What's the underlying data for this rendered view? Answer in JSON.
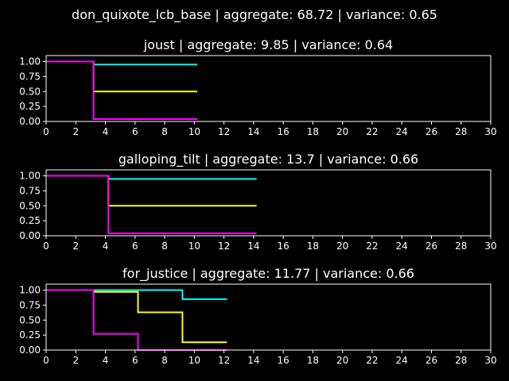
{
  "figure": {
    "title": "don_quixote_lcb_base | aggregate: 68.72 | variance: 0.65"
  },
  "colors": {
    "background": "#000000",
    "axes": "#ffffff",
    "series": [
      "#00ffff",
      "#ffff00",
      "#ff00ff"
    ]
  },
  "chart_data": [
    {
      "type": "line",
      "step": "post",
      "title": "joust | aggregate: 9.85 | variance: 0.64",
      "xlim": [
        0,
        30
      ],
      "ylim": [
        0,
        1.1
      ],
      "xticks": [
        "0",
        "2",
        "4",
        "6",
        "8",
        "10",
        "12",
        "14",
        "16",
        "18",
        "20",
        "22",
        "24",
        "26",
        "28",
        "30"
      ],
      "yticks": [
        "0.00",
        "0.25",
        "0.50",
        "0.75",
        "1.00"
      ],
      "series": [
        {
          "color": "#00ffff",
          "x": [
            0,
            3.2,
            10.2
          ],
          "y": [
            1.0,
            0.95,
            0.95
          ]
        },
        {
          "color": "#ffff00",
          "x": [
            0,
            3.2,
            10.2
          ],
          "y": [
            1.0,
            0.5,
            0.5
          ]
        },
        {
          "color": "#ff00ff",
          "x": [
            0,
            3.2,
            10.2
          ],
          "y": [
            1.0,
            0.04,
            0.04
          ]
        }
      ]
    },
    {
      "type": "line",
      "step": "post",
      "title": "galloping_tilt | aggregate: 13.7 | variance: 0.66",
      "xlim": [
        0,
        30
      ],
      "ylim": [
        0,
        1.1
      ],
      "xticks": [
        "0",
        "2",
        "4",
        "6",
        "8",
        "10",
        "12",
        "14",
        "16",
        "18",
        "20",
        "22",
        "24",
        "26",
        "28",
        "30"
      ],
      "yticks": [
        "0.00",
        "0.25",
        "0.50",
        "0.75",
        "1.00"
      ],
      "series": [
        {
          "color": "#00ffff",
          "x": [
            0,
            4.2,
            14.2
          ],
          "y": [
            1.0,
            0.95,
            0.95
          ]
        },
        {
          "color": "#ffff00",
          "x": [
            0,
            4.2,
            14.2
          ],
          "y": [
            1.0,
            0.5,
            0.5
          ]
        },
        {
          "color": "#ff00ff",
          "x": [
            0,
            4.2,
            14.2
          ],
          "y": [
            1.0,
            0.04,
            0.04
          ]
        }
      ]
    },
    {
      "type": "line",
      "step": "post",
      "title": "for_justice | aggregate: 11.77 | variance: 0.66",
      "xlim": [
        0,
        30
      ],
      "ylim": [
        0,
        1.1
      ],
      "xticks": [
        "0",
        "2",
        "4",
        "6",
        "8",
        "10",
        "12",
        "14",
        "16",
        "18",
        "20",
        "22",
        "24",
        "26",
        "28",
        "30"
      ],
      "yticks": [
        "0.00",
        "0.25",
        "0.50",
        "0.75",
        "1.00"
      ],
      "series": [
        {
          "color": "#00ffff",
          "x": [
            0,
            3.2,
            6.2,
            9.2,
            12.2
          ],
          "y": [
            1.0,
            1.0,
            1.0,
            0.85,
            0.85
          ]
        },
        {
          "color": "#ffff00",
          "x": [
            0,
            3.2,
            6.2,
            9.2,
            12.2
          ],
          "y": [
            1.0,
            0.97,
            0.63,
            0.13,
            0.13
          ]
        },
        {
          "color": "#ff00ff",
          "x": [
            0,
            3.2,
            6.2,
            9.2,
            12.2
          ],
          "y": [
            1.0,
            0.27,
            0.0,
            0.0,
            0.0
          ]
        }
      ]
    }
  ]
}
